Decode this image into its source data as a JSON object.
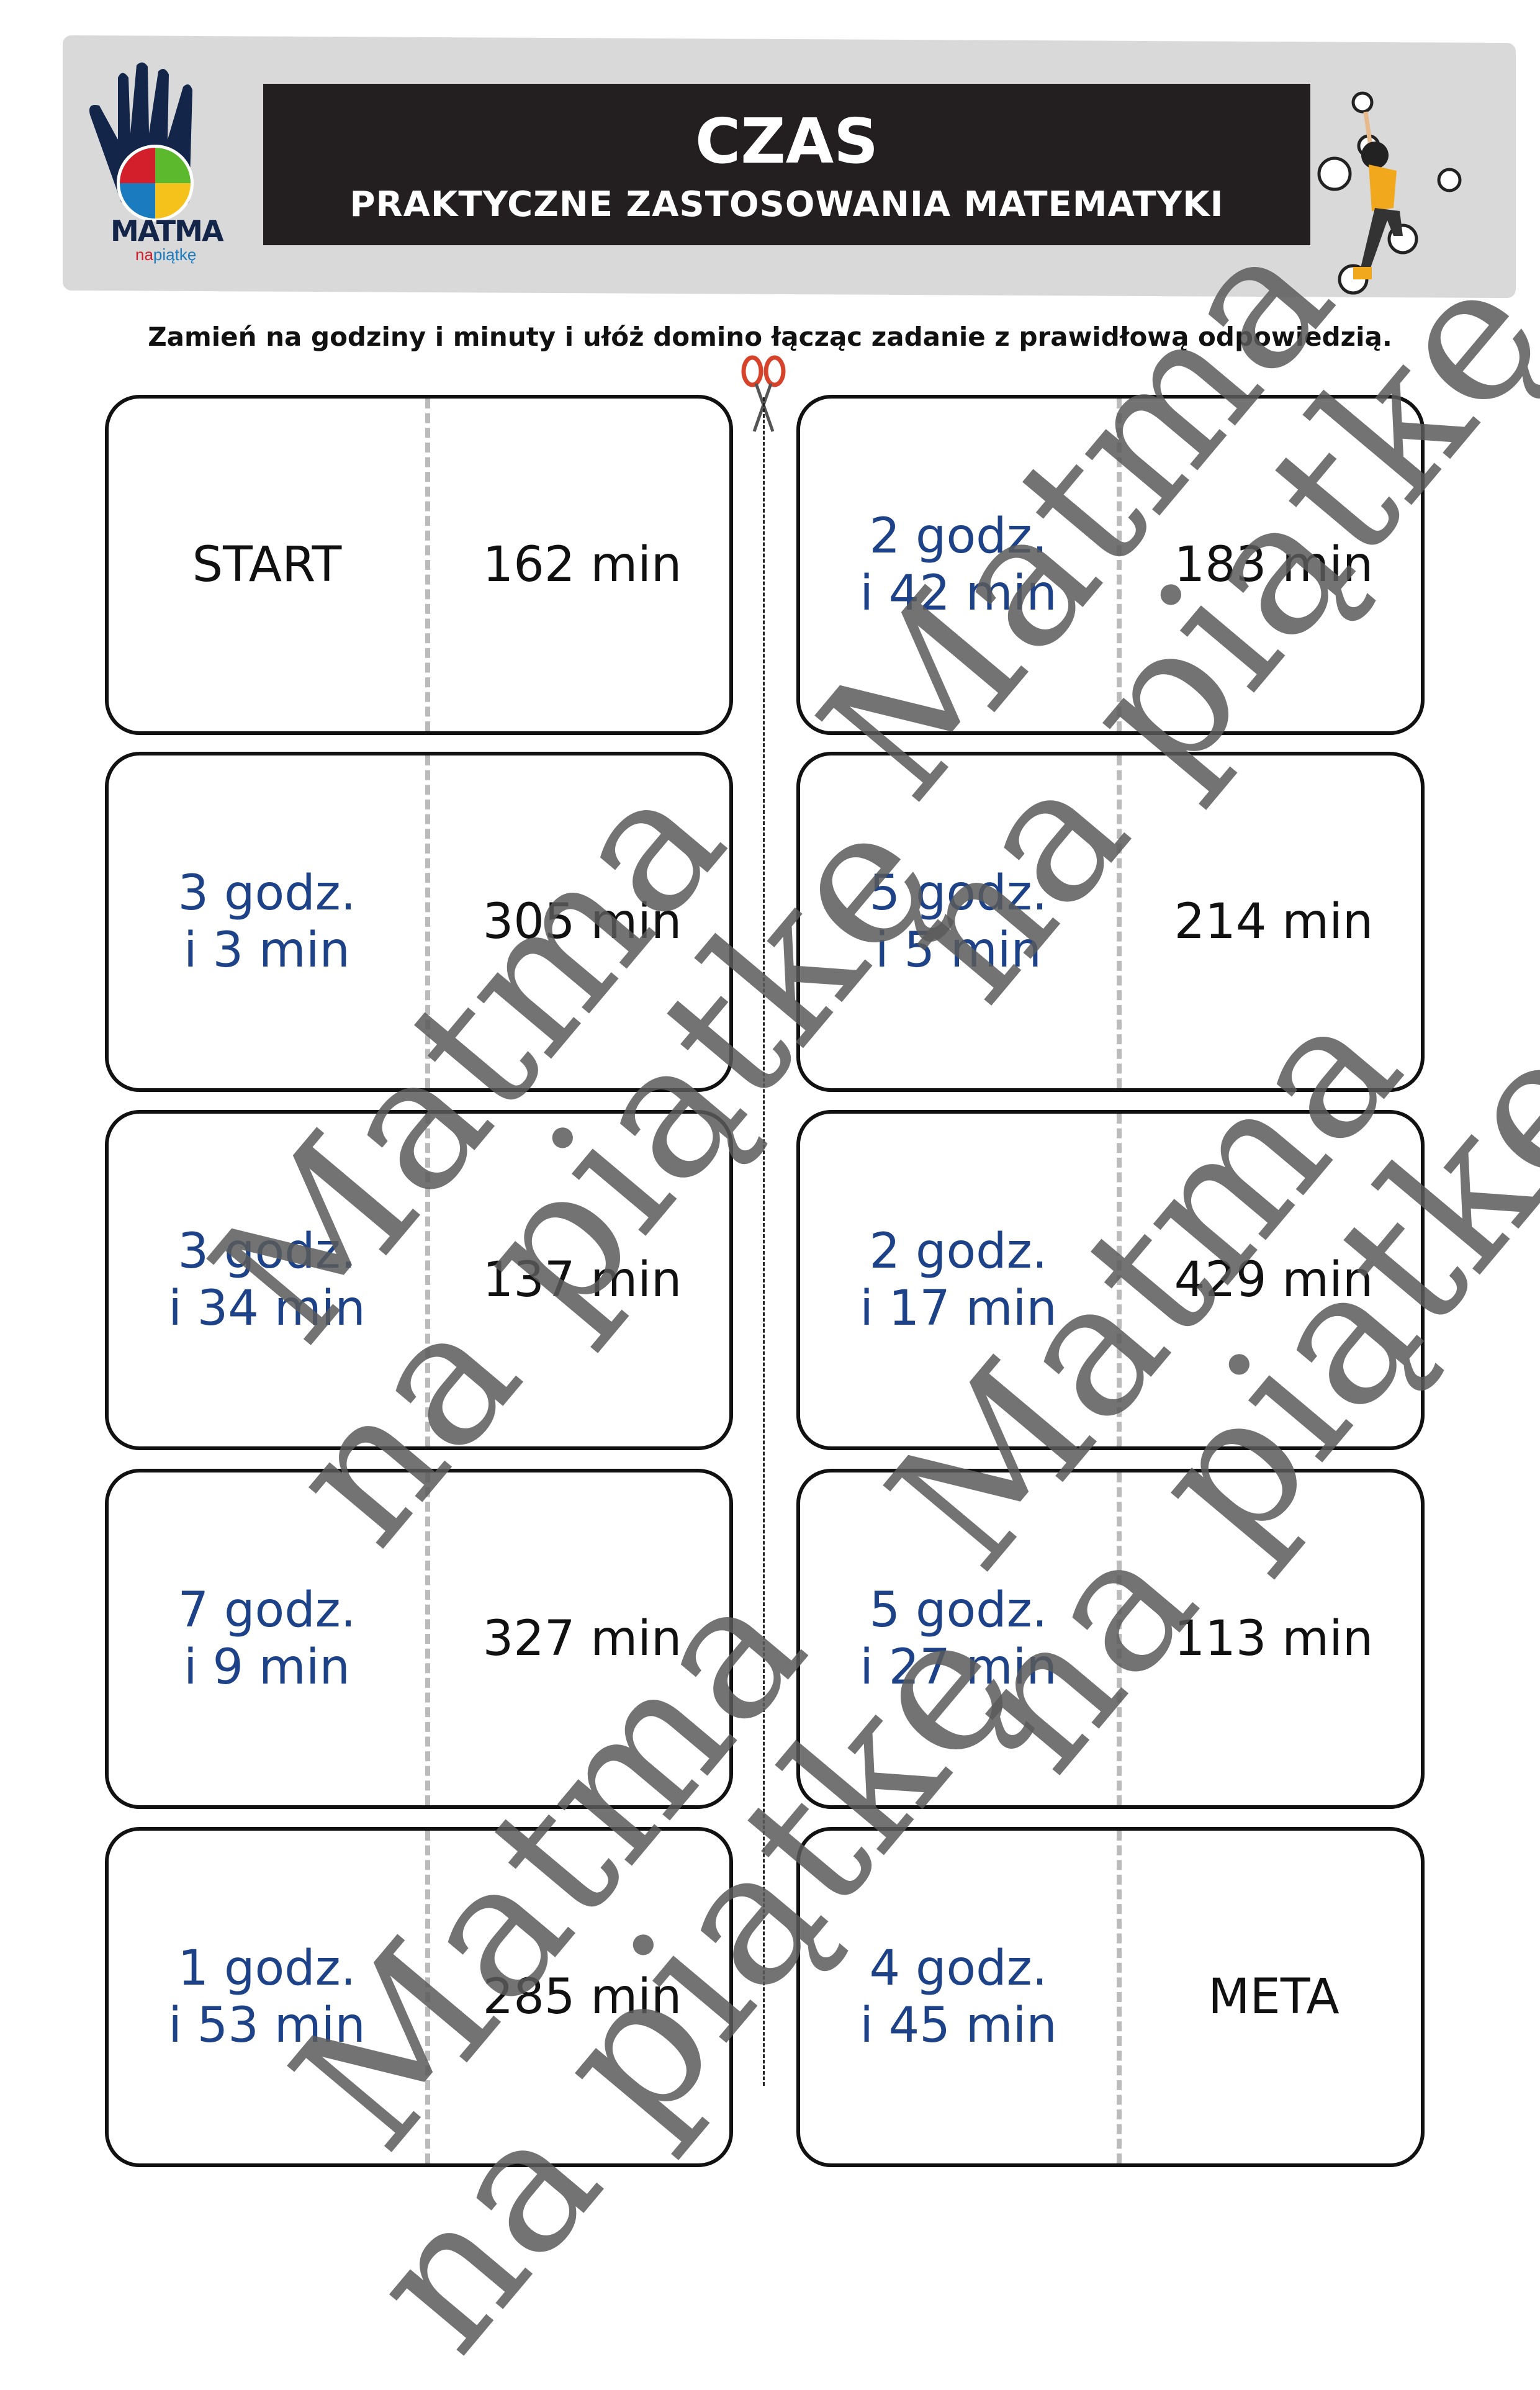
{
  "header": {
    "title": "CZAS",
    "subtitle": "PRAKTYCZNE ZASTOSOWANIA MATEMATYKI",
    "logo_text": "MATMA",
    "logo_subtext_a": "na",
    "logo_subtext_b": "piątkę"
  },
  "instruction": "Zamień na godziny i minuty i ułóż domino łącząc zadanie z prawidłową odpowiedzią.",
  "colors": {
    "answer": "#1d4288",
    "header_bg": "#231f20",
    "band": "#d9d9d9"
  },
  "dominoes": [
    {
      "left": "START",
      "right": "162 min"
    },
    {
      "left": "2 godz.\ni 42 min",
      "right": "183 min"
    },
    {
      "left": "3 godz.\ni 3 min",
      "right": "305 min"
    },
    {
      "left": "5 godz.\ni 5 min",
      "right": "214 min"
    },
    {
      "left": "3 godz.\ni 34 min",
      "right": "137 min"
    },
    {
      "left": "2 godz.\ni 17 min",
      "right": "429 min"
    },
    {
      "left": "7 godz.\ni 9 min",
      "right": "327 min"
    },
    {
      "left": "5 godz.\ni 27 min",
      "right": "113 min"
    },
    {
      "left": "1 godz.\ni 53 min",
      "right": "285 min"
    },
    {
      "left": "4 godz.\ni 45 min",
      "right": "META"
    }
  ],
  "watermark": {
    "line1": "Matma",
    "line2": "na piątkę"
  }
}
